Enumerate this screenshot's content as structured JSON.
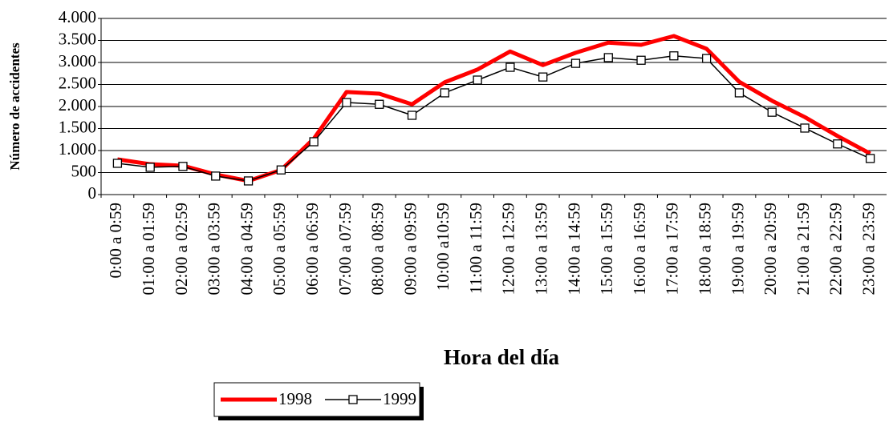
{
  "chart_data": {
    "type": "line",
    "x_label": "Hora del día",
    "y_label": "Número de accidentes",
    "categories": [
      "0:00 a 0:59",
      "01:00 a 01:59",
      "02:00 a 02:59",
      "03:00 a 03:59",
      "04:00 a 04:59",
      "05:00 a 05:59",
      "06:00 a 06:59",
      "07:00 a 07:59",
      "08:00 a 08:59",
      "09:00 a 09:59",
      "10:00 a10:59",
      "11:00 a 11:59",
      "12:00 a 12:59",
      "13:00 a 13:59",
      "14:00 a 14:59",
      "15:00 a 15:59",
      "16:00 a 16:59",
      "17:00 a 17:59",
      "18:00 a 18:59",
      "19:00 a 19:59",
      "20:00 a 20:59",
      "21:00 a 21:59",
      "22:00 a 22:59",
      "23:00 a 23:59"
    ],
    "series": [
      {
        "name": "1998",
        "color": "#ff0000",
        "values": [
          800,
          690,
          655,
          455,
          310,
          560,
          1270,
          2330,
          2290,
          2050,
          2550,
          2840,
          3250,
          2940,
          3220,
          3450,
          3400,
          3600,
          3310,
          2560,
          2130,
          1760,
          1330,
          930
        ]
      },
      {
        "name": "1999",
        "color": "#000000",
        "marker": "square",
        "values": [
          710,
          620,
          640,
          420,
          310,
          560,
          1200,
          2090,
          2050,
          1800,
          2310,
          2600,
          2890,
          2670,
          2980,
          3110,
          3050,
          3150,
          3090,
          2310,
          1870,
          1510,
          1150,
          820
        ]
      }
    ],
    "ylim": [
      0,
      4000
    ],
    "yticks": [
      0,
      500,
      {
        "value": 1000,
        "label": "1.000"
      },
      {
        "value": 1500,
        "label": "1.500"
      },
      {
        "value": 2000,
        "label": "2.000"
      },
      {
        "value": 2500,
        "label": "2.500"
      },
      {
        "value": 3000,
        "label": "3.000"
      },
      {
        "value": 3500,
        "label": "3.500"
      },
      {
        "value": 4000,
        "label": "4.000"
      }
    ],
    "grid": true,
    "legend": "bottom"
  }
}
